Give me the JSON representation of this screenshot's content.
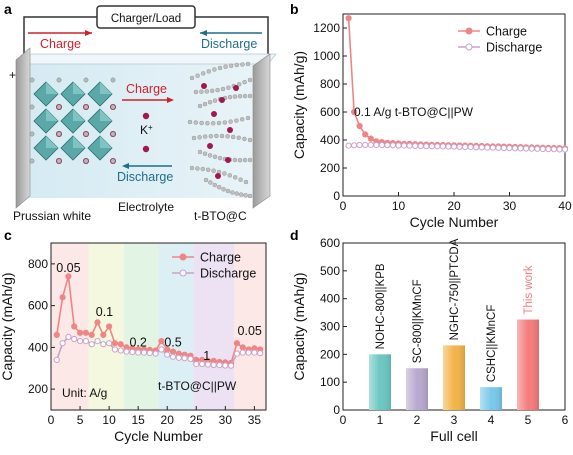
{
  "panels": {
    "a": {
      "letter": "a",
      "charger_label": "Charger/Load",
      "charge_top": "Charge",
      "discharge_top": "Discharge",
      "charge_inner": "Charge",
      "discharge_inner": "Discharge",
      "ion_label": "K",
      "ion_sup": "+",
      "plus": "+",
      "minus": "-",
      "electrolyte": "Electrolyte",
      "left_electrode": "Prussian white",
      "right_electrode": "t-BTO@C"
    },
    "b": {
      "letter": "b",
      "annotation": "0.1 A/g   t-BTO@C||PW"
    },
    "c": {
      "letter": "c",
      "unit_note": "Unit: A/g",
      "cell_label": "t-BTO@C||PW"
    },
    "d": {
      "letter": "d"
    }
  },
  "colors": {
    "charge": "#f08585",
    "discharge": "#c9a2c9",
    "red_text": "#d0202a",
    "teal_text": "#1f6e86",
    "bar1": "#6cc7c2",
    "bar2": "#b8a9cf",
    "bar3": "#f2b44a",
    "bar4": "#78c8ea",
    "bar5": "#f57c7c"
  },
  "chart_data": [
    {
      "panel": "b",
      "type": "line",
      "xlabel": "Cycle Number",
      "ylabel": "Capacity (mAh/g)",
      "xlim": [
        0,
        40
      ],
      "ylim": [
        0,
        1300
      ],
      "xticks": [
        0,
        10,
        20,
        30,
        40
      ],
      "yticks": [
        0,
        200,
        400,
        600,
        800,
        1000,
        1200
      ],
      "legend": "top-right",
      "series": [
        {
          "name": "Charge",
          "x": [
            1,
            2,
            3,
            4,
            5,
            6,
            7,
            8,
            9,
            10,
            11,
            12,
            13,
            14,
            15,
            16,
            17,
            18,
            19,
            20,
            21,
            22,
            23,
            24,
            25,
            26,
            27,
            28,
            29,
            30,
            31,
            32,
            33,
            34,
            35,
            36,
            37,
            38,
            39,
            40
          ],
          "y": [
            1270,
            600,
            500,
            440,
            410,
            390,
            385,
            380,
            378,
            375,
            373,
            372,
            370,
            368,
            367,
            366,
            365,
            364,
            363,
            362,
            361,
            360,
            359,
            358,
            357,
            356,
            355,
            354,
            353,
            352,
            350,
            349,
            348,
            347,
            346,
            345,
            344,
            343,
            342,
            341
          ]
        },
        {
          "name": "Discharge",
          "x": [
            1,
            2,
            3,
            4,
            5,
            6,
            7,
            8,
            9,
            10,
            11,
            12,
            13,
            14,
            15,
            16,
            17,
            18,
            19,
            20,
            21,
            22,
            23,
            24,
            25,
            26,
            27,
            28,
            29,
            30,
            31,
            32,
            33,
            34,
            35,
            36,
            37,
            38,
            39,
            40
          ],
          "y": [
            360,
            362,
            364,
            365,
            365,
            364,
            364,
            363,
            362,
            361,
            360,
            359,
            358,
            357,
            356,
            355,
            355,
            354,
            353,
            352,
            351,
            350,
            349,
            348,
            347,
            346,
            345,
            344,
            343,
            342,
            341,
            340,
            339,
            338,
            337,
            336,
            335,
            334,
            333,
            332
          ]
        }
      ]
    },
    {
      "panel": "c",
      "type": "line",
      "xlabel": "Cycle Number",
      "ylabel": "Capacity (mAh/g)",
      "xlim": [
        0,
        37
      ],
      "ylim": [
        100,
        900
      ],
      "xticks": [
        0,
        5,
        10,
        15,
        20,
        25,
        30,
        35
      ],
      "yticks": [
        200,
        400,
        600,
        800
      ],
      "legend": "top-right",
      "rate_labels": [
        {
          "text": "0.05",
          "x": 3,
          "y": 760
        },
        {
          "text": "0.1",
          "x": 9.2,
          "y": 550
        },
        {
          "text": "0.2",
          "x": 15,
          "y": 405
        },
        {
          "text": "0.5",
          "x": 21,
          "y": 405
        },
        {
          "text": "1",
          "x": 26.8,
          "y": 340
        },
        {
          "text": "0.05",
          "x": 34.2,
          "y": 460
        }
      ],
      "rate_regions": [
        {
          "x0": 0,
          "x1": 6.5,
          "color": "#fde8e8"
        },
        {
          "x0": 6.5,
          "x1": 12.5,
          "color": "#f4f8de"
        },
        {
          "x0": 12.5,
          "x1": 18.5,
          "color": "#e2f4e4"
        },
        {
          "x0": 18.5,
          "x1": 24.5,
          "color": "#dceff4"
        },
        {
          "x0": 24.5,
          "x1": 31.5,
          "color": "#ece2f4"
        },
        {
          "x0": 31.5,
          "x1": 37,
          "color": "#fde8e8"
        }
      ],
      "series": [
        {
          "name": "Charge",
          "x": [
            1,
            2,
            3,
            4,
            5,
            6,
            7,
            8,
            9,
            10,
            11,
            12,
            13,
            14,
            15,
            16,
            17,
            18,
            19,
            20,
            21,
            22,
            23,
            24,
            25,
            26,
            27,
            28,
            29,
            30,
            31,
            32,
            33,
            34,
            35,
            36
          ],
          "y": [
            460,
            640,
            740,
            500,
            470,
            470,
            460,
            520,
            460,
            500,
            420,
            415,
            400,
            395,
            390,
            390,
            388,
            385,
            430,
            390,
            380,
            370,
            365,
            360,
            340,
            340,
            335,
            335,
            330,
            328,
            325,
            420,
            400,
            390,
            395,
            390
          ]
        },
        {
          "name": "Discharge",
          "x": [
            1,
            2,
            3,
            4,
            5,
            6,
            7,
            8,
            9,
            10,
            11,
            12,
            13,
            14,
            15,
            16,
            17,
            18,
            19,
            20,
            21,
            22,
            23,
            24,
            25,
            26,
            27,
            28,
            29,
            30,
            31,
            32,
            33,
            34,
            35,
            36
          ],
          "y": [
            340,
            420,
            450,
            440,
            430,
            430,
            415,
            430,
            415,
            420,
            390,
            385,
            380,
            378,
            375,
            375,
            373,
            370,
            390,
            365,
            355,
            350,
            348,
            345,
            320,
            320,
            318,
            316,
            315,
            313,
            312,
            370,
            375,
            375,
            375,
            372
          ]
        }
      ]
    },
    {
      "panel": "d",
      "type": "bar",
      "xlabel": "Full cell",
      "ylabel": "Capacity (mAh/g)",
      "xlim": [
        0,
        6
      ],
      "ylim": [
        0,
        600
      ],
      "xticks": [
        0,
        1,
        2,
        3,
        4,
        5,
        6
      ],
      "yticks": [
        0,
        100,
        200,
        300,
        400,
        500,
        600
      ],
      "categories": [
        1,
        2,
        3,
        4,
        5
      ],
      "values": [
        200,
        150,
        232,
        82,
        325
      ],
      "bar_labels": [
        "NOHC-800||KPB",
        "SC-800||KMnCF",
        "NGHC-750||PTCDA",
        "CSHC||KMnCF",
        "This work"
      ]
    }
  ]
}
